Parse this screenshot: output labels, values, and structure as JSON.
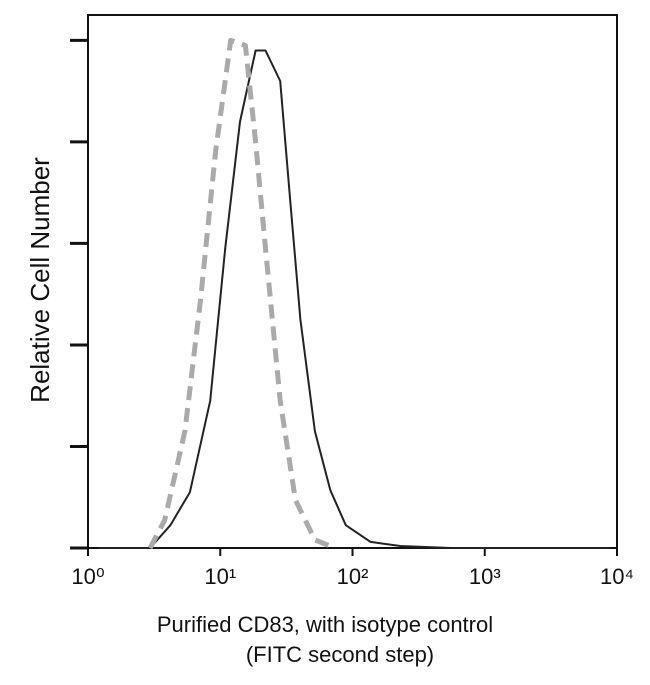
{
  "chart_data": {
    "type": "line",
    "xlabel": [
      "Purified CD83, with isotype control",
      "(FITC second step)"
    ],
    "ylabel": "Relative Cell Number",
    "xscale": "log",
    "xlim": [
      1,
      10000
    ],
    "xticks": [
      {
        "value": 1,
        "label": "10⁰"
      },
      {
        "value": 10,
        "label": "10¹"
      },
      {
        "value": 100,
        "label": "10²"
      },
      {
        "value": 1000,
        "label": "10³"
      },
      {
        "value": 10000,
        "label": "10⁴"
      }
    ],
    "ylim": [
      0,
      105
    ],
    "yticks": [
      0,
      20,
      40,
      60,
      80,
      100
    ],
    "series": [
      {
        "color": "#222222",
        "dashed": false,
        "x": [
          1.2,
          2.95,
          4.2,
          5.9,
          8.4,
          10.9,
          14.1,
          18.5,
          22,
          28.4,
          33.9,
          40.4,
          52,
          68,
          89,
          137,
          230,
          550,
          8900
        ],
        "values": [
          0,
          0,
          4.5,
          11,
          29,
          59,
          84,
          98,
          98,
          92,
          68,
          45,
          23,
          11.4,
          4.5,
          1.2,
          0.4,
          0,
          0
        ]
      },
      {
        "color": "#aaaaaa",
        "dashed": true,
        "x": [
          2.95,
          3.8,
          5.4,
          7.1,
          9.2,
          12,
          15.5,
          18.5,
          22,
          28.4,
          37,
          52,
          74
        ],
        "values": [
          0,
          5.5,
          23,
          49,
          78,
          100,
          99,
          80,
          59,
          29,
          9.5,
          1.6,
          0
        ]
      }
    ]
  }
}
